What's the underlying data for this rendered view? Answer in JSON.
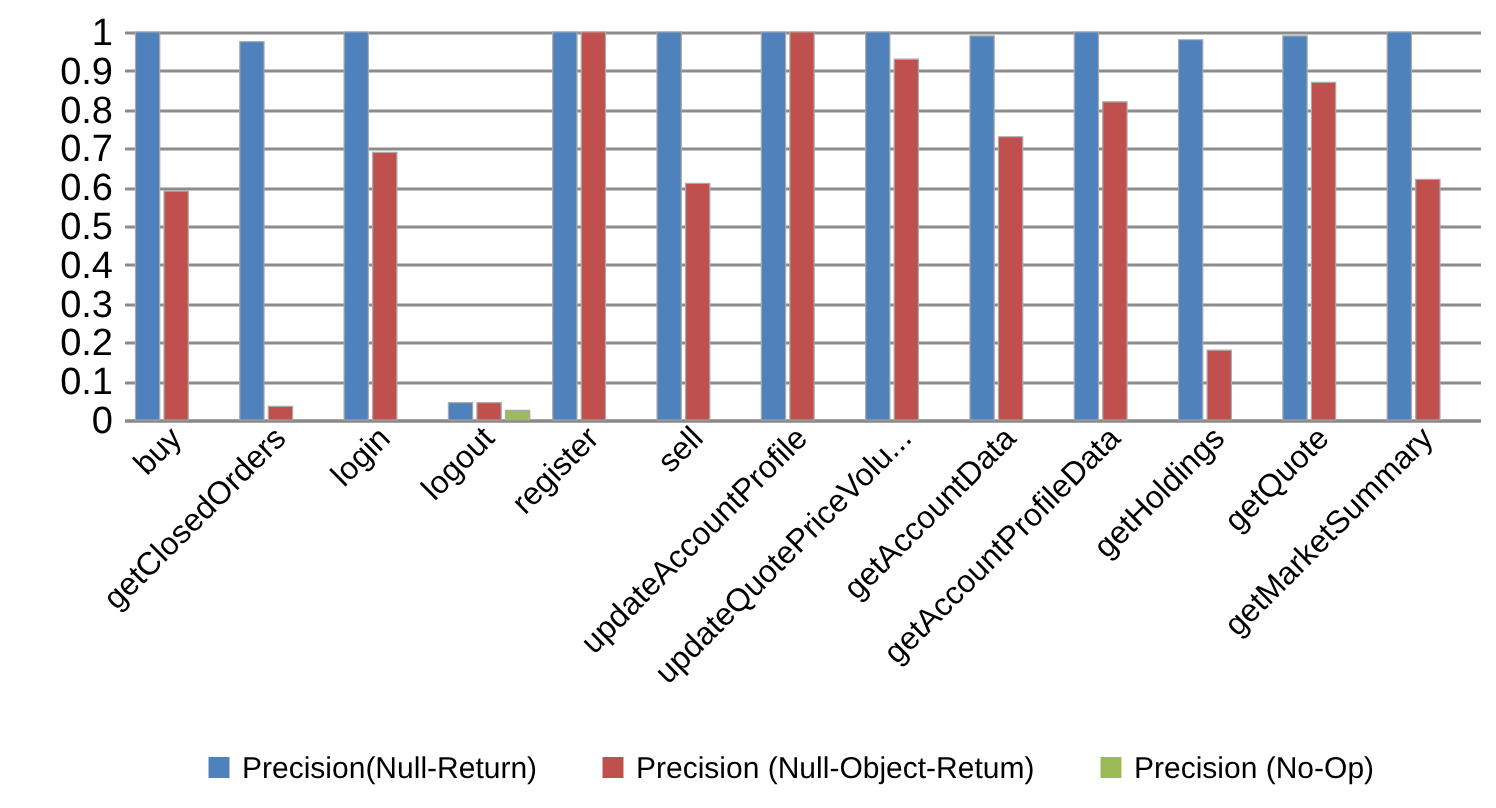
{
  "chart_data": {
    "type": "bar",
    "categories": [
      "buy",
      "getClosedOrders",
      "login",
      "logout",
      "register",
      "sell",
      "updateAccountProfile",
      "updateQuotePriceVolu...",
      "getAccountData",
      "getAccountProfileData",
      "getHoldings",
      "getQuote",
      "getMarketSummary"
    ],
    "series": [
      {
        "name": "Precision(Null-Return)",
        "color": "#4f81bd",
        "values": [
          1,
          0.975,
          1,
          0.045,
          1,
          1,
          1,
          1,
          0.99,
          1,
          0.98,
          0.99,
          1
        ]
      },
      {
        "name": "Precision (Null-Object-Retum)",
        "color": "#c0504d",
        "values": [
          0.59,
          0.035,
          0.69,
          0.045,
          1,
          0.61,
          1,
          0.93,
          0.73,
          0.82,
          0.18,
          0.87,
          0.62
        ]
      },
      {
        "name": "Precision (No-Op)",
        "color": "#9bbb59",
        "values": [
          null,
          null,
          null,
          0.025,
          null,
          null,
          null,
          null,
          null,
          null,
          null,
          null,
          null
        ]
      }
    ],
    "ylim": [
      0,
      1
    ],
    "yticks": [
      0,
      0.1,
      0.2,
      0.3,
      0.4,
      0.5,
      0.6,
      0.7,
      0.8,
      0.9,
      1
    ],
    "grid": "y",
    "legend": "bottom"
  }
}
